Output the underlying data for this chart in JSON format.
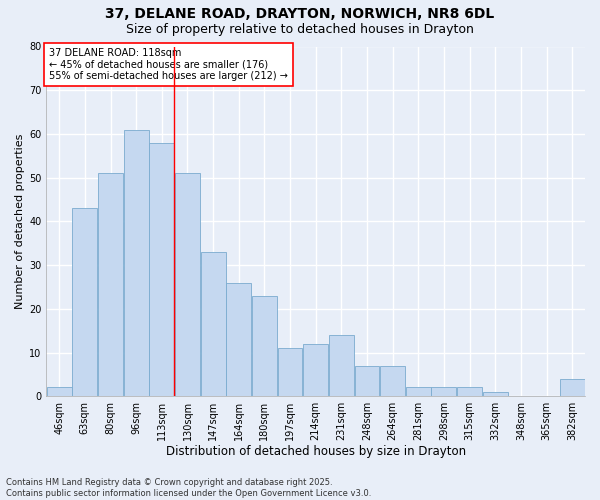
{
  "title1": "37, DELANE ROAD, DRAYTON, NORWICH, NR8 6DL",
  "title2": "Size of property relative to detached houses in Drayton",
  "xlabel": "Distribution of detached houses by size in Drayton",
  "ylabel": "Number of detached properties",
  "categories": [
    "46sqm",
    "63sqm",
    "80sqm",
    "96sqm",
    "113sqm",
    "130sqm",
    "147sqm",
    "164sqm",
    "180sqm",
    "197sqm",
    "214sqm",
    "231sqm",
    "248sqm",
    "264sqm",
    "281sqm",
    "298sqm",
    "315sqm",
    "332sqm",
    "348sqm",
    "365sqm",
    "382sqm"
  ],
  "values": [
    2,
    43,
    51,
    61,
    58,
    51,
    33,
    26,
    23,
    11,
    12,
    14,
    7,
    7,
    2,
    2,
    2,
    1,
    0,
    0,
    4
  ],
  "bar_color": "#c5d8f0",
  "bar_edge_color": "#7aabcf",
  "vline_x_index": 4,
  "annotation_text_line1": "37 DELANE ROAD: 118sqm",
  "annotation_text_line2": "← 45% of detached houses are smaller (176)",
  "annotation_text_line3": "55% of semi-detached houses are larger (212) →",
  "annotation_box_facecolor": "white",
  "annotation_box_edgecolor": "red",
  "vline_color": "red",
  "footnote_line1": "Contains HM Land Registry data © Crown copyright and database right 2025.",
  "footnote_line2": "Contains public sector information licensed under the Open Government Licence v3.0.",
  "ylim": [
    0,
    80
  ],
  "yticks": [
    0,
    10,
    20,
    30,
    40,
    50,
    60,
    70,
    80
  ],
  "background_color": "#e8eef8",
  "grid_color": "white",
  "title1_fontsize": 10,
  "title2_fontsize": 9,
  "xlabel_fontsize": 8.5,
  "ylabel_fontsize": 8,
  "tick_fontsize": 7,
  "annotation_fontsize": 7,
  "footnote_fontsize": 6
}
